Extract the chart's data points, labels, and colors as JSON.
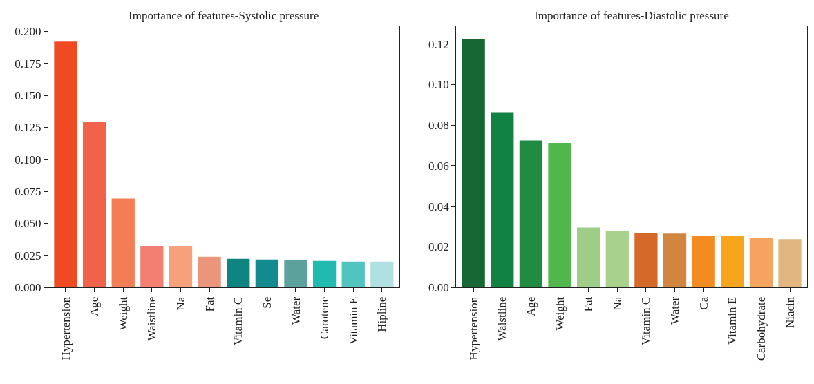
{
  "chart_data": [
    {
      "type": "bar",
      "title": "Importance of features-Systolic pressure",
      "categories": [
        "Hypertension",
        "Age",
        "Weight",
        "Waistline",
        "Na",
        "Fat",
        "Vitamin C",
        "Se",
        "Water",
        "Carotene",
        "Vitamin E",
        "Hipline"
      ],
      "values": [
        0.192,
        0.1295,
        0.0693,
        0.0324,
        0.0324,
        0.0239,
        0.0223,
        0.0217,
        0.0211,
        0.0207,
        0.0201,
        0.0201
      ],
      "colors": [
        "#f04a22",
        "#f0624a",
        "#f37e55",
        "#f27f72",
        "#f6a07c",
        "#eb957c",
        "#0e8481",
        "#138a90",
        "#5da19c",
        "#21bab0",
        "#52c4c0",
        "#b0e0e2"
      ],
      "ylim": [
        0,
        0.204
      ],
      "yticks": [
        {
          "value": 0,
          "label": "0.000"
        },
        {
          "value": 0.025,
          "label": "0.025"
        },
        {
          "value": 0.05,
          "label": "0.050"
        },
        {
          "value": 0.075,
          "label": "0.075"
        },
        {
          "value": 0.1,
          "label": "0.100"
        },
        {
          "value": 0.125,
          "label": "0.125"
        },
        {
          "value": 0.15,
          "label": "0.150"
        },
        {
          "value": 0.175,
          "label": "0.175"
        },
        {
          "value": 0.2,
          "label": "0.200"
        }
      ],
      "grid": false
    },
    {
      "type": "bar",
      "title": "Importance of features-Diastolic pressure",
      "categories": [
        "Hypertension",
        "Waistline",
        "Age",
        "Weight",
        "Fat",
        "Na",
        "Vitamin C",
        "Water",
        "Ca",
        "Vitamin E",
        "Carbohydrate",
        "Niacin"
      ],
      "values": [
        0.1225,
        0.0864,
        0.0724,
        0.0712,
        0.0295,
        0.0279,
        0.0268,
        0.0265,
        0.0252,
        0.0252,
        0.0242,
        0.0238
      ],
      "colors": [
        "#176734",
        "#128242",
        "#1f8c42",
        "#50b74a",
        "#9dcd88",
        "#a8d28c",
        "#d4692a",
        "#d2853e",
        "#f48b20",
        "#f8a51e",
        "#f4a45e",
        "#e1b680"
      ],
      "ylim": [
        0,
        0.1288
      ],
      "yticks": [
        {
          "value": 0,
          "label": "0.00"
        },
        {
          "value": 0.02,
          "label": "0.02"
        },
        {
          "value": 0.04,
          "label": "0.04"
        },
        {
          "value": 0.06,
          "label": "0.06"
        },
        {
          "value": 0.08,
          "label": "0.08"
        },
        {
          "value": 0.1,
          "label": "0.10"
        },
        {
          "value": 0.12,
          "label": "0.12"
        }
      ],
      "grid": false
    }
  ]
}
